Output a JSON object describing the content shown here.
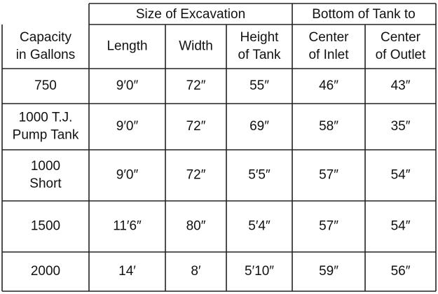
{
  "table": {
    "groups": [
      "Size of Excavation",
      "Bottom of Tank to"
    ],
    "columns": [
      [
        "Capacity",
        "in Gallons"
      ],
      [
        "Length"
      ],
      [
        "Width"
      ],
      [
        "Height",
        "of Tank"
      ],
      [
        "Center",
        "of Inlet"
      ],
      [
        "Center",
        "of Outlet"
      ]
    ],
    "rows": [
      [
        [
          "750"
        ],
        "9′0″",
        "72″",
        "55″",
        "46″",
        "43″"
      ],
      [
        [
          "1000 T.J.",
          "Pump Tank"
        ],
        "9′0″",
        "72″",
        "69″",
        "58″",
        "35″"
      ],
      [
        [
          "1000",
          "Short"
        ],
        "9′0″",
        "72″",
        "5′5″",
        "57″",
        "54″"
      ],
      [
        [
          "1500"
        ],
        "11′6″",
        "80″",
        "5′4″",
        "57″",
        "54″"
      ],
      [
        [
          "2000"
        ],
        "14′",
        "8′",
        "5′10″",
        "59″",
        "56″"
      ]
    ]
  }
}
